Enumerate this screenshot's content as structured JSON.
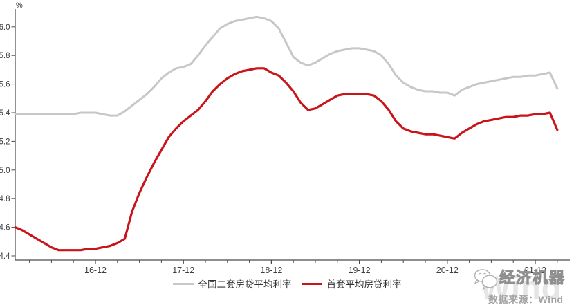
{
  "chart": {
    "y_axis_unit_label": "%",
    "source_note": "数据来源：Wind",
    "brand_name": "经济机器",
    "watermark_text": "Wind",
    "colors": {
      "axis": "#4a4a4a",
      "tick_label": "#3d3d3d",
      "legend_text": "#333333",
      "second_home_line": "#c7c7c7",
      "first_home_line": "#c9141a"
    }
  },
  "chart_data": {
    "type": "line",
    "title": "",
    "xlabel": "",
    "ylabel": "%",
    "ylim": [
      4.4,
      6.1
    ],
    "yticks": [
      4.4,
      4.6,
      4.8,
      5.0,
      5.2,
      5.4,
      5.6,
      5.8,
      6.0
    ],
    "grid": false,
    "legend_position": "bottom",
    "x": [
      "16-01",
      "16-02",
      "16-03",
      "16-04",
      "16-05",
      "16-06",
      "16-07",
      "16-08",
      "16-09",
      "16-10",
      "16-11",
      "16-12",
      "17-01",
      "17-02",
      "17-03",
      "17-04",
      "17-05",
      "17-06",
      "17-07",
      "17-08",
      "17-09",
      "17-10",
      "17-11",
      "17-12",
      "18-01",
      "18-02",
      "18-03",
      "18-04",
      "18-05",
      "18-06",
      "18-07",
      "18-08",
      "18-09",
      "18-10",
      "18-11",
      "18-12",
      "19-01",
      "19-02",
      "19-03",
      "19-04",
      "19-05",
      "19-06",
      "19-07",
      "19-08",
      "19-09",
      "19-10",
      "19-11",
      "19-12",
      "20-01",
      "20-02",
      "20-03",
      "20-04",
      "20-05",
      "20-06",
      "20-07",
      "20-08",
      "20-09",
      "20-10",
      "20-11",
      "20-12",
      "21-01",
      "21-02",
      "21-03",
      "21-04",
      "21-05",
      "21-06",
      "21-07",
      "21-08",
      "21-09",
      "21-10",
      "21-11",
      "21-12",
      "22-01",
      "22-02",
      "22-03"
    ],
    "x_major_indices": [
      11,
      23,
      35,
      47,
      59,
      71
    ],
    "x_major_labels": [
      "16-12",
      "17-12",
      "18-12",
      "19-12",
      "20-12",
      "21-12"
    ],
    "series": [
      {
        "name": "全国二套房贷平均利率",
        "color": "#c7c7c7",
        "values": [
          5.39,
          5.39,
          5.39,
          5.39,
          5.39,
          5.39,
          5.39,
          5.39,
          5.39,
          5.4,
          5.4,
          5.4,
          5.39,
          5.38,
          5.38,
          5.41,
          5.45,
          5.49,
          5.53,
          5.58,
          5.64,
          5.68,
          5.71,
          5.72,
          5.74,
          5.8,
          5.87,
          5.93,
          5.99,
          6.02,
          6.04,
          6.05,
          6.06,
          6.07,
          6.06,
          6.04,
          5.99,
          5.89,
          5.79,
          5.75,
          5.73,
          5.75,
          5.78,
          5.81,
          5.83,
          5.84,
          5.85,
          5.85,
          5.84,
          5.83,
          5.8,
          5.74,
          5.66,
          5.61,
          5.58,
          5.56,
          5.55,
          5.55,
          5.54,
          5.54,
          5.52,
          5.56,
          5.58,
          5.6,
          5.61,
          5.62,
          5.63,
          5.64,
          5.65,
          5.65,
          5.66,
          5.66,
          5.67,
          5.68,
          5.57
        ]
      },
      {
        "name": "首套平均房贷利率",
        "color": "#c9141a",
        "values": [
          4.6,
          4.58,
          4.55,
          4.52,
          4.49,
          4.46,
          4.44,
          4.44,
          4.44,
          4.44,
          4.45,
          4.45,
          4.46,
          4.47,
          4.49,
          4.52,
          4.71,
          4.84,
          4.95,
          5.05,
          5.14,
          5.23,
          5.29,
          5.34,
          5.38,
          5.42,
          5.48,
          5.55,
          5.6,
          5.64,
          5.67,
          5.69,
          5.7,
          5.71,
          5.71,
          5.68,
          5.66,
          5.61,
          5.55,
          5.47,
          5.42,
          5.43,
          5.46,
          5.49,
          5.52,
          5.53,
          5.53,
          5.53,
          5.53,
          5.52,
          5.48,
          5.42,
          5.34,
          5.29,
          5.27,
          5.26,
          5.25,
          5.25,
          5.24,
          5.23,
          5.22,
          5.26,
          5.29,
          5.32,
          5.34,
          5.35,
          5.36,
          5.37,
          5.37,
          5.38,
          5.38,
          5.39,
          5.39,
          5.4,
          5.28
        ]
      }
    ]
  }
}
